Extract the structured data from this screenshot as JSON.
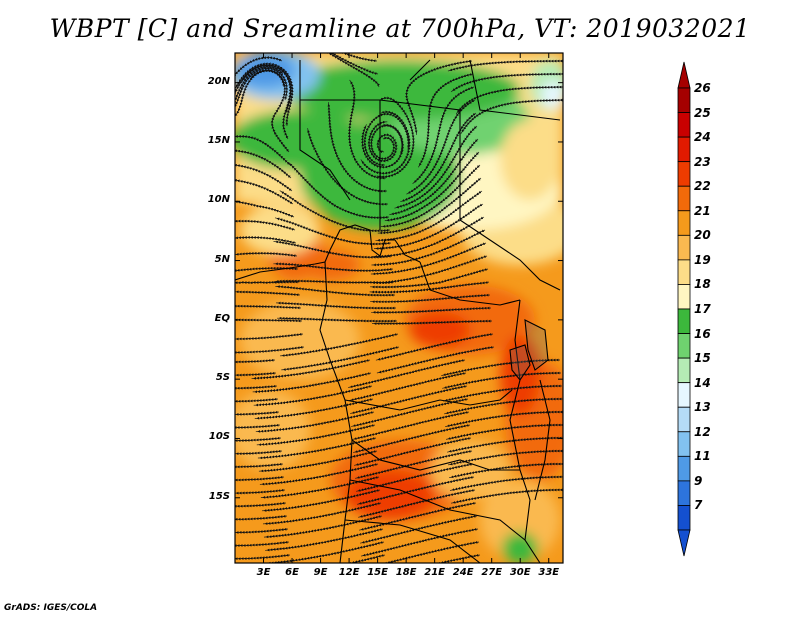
{
  "title": "WBPT [C] and Sreamline at 700hPa, VT: 2019032021",
  "credit": "GrADS: IGES/COLA",
  "map": {
    "variable": "Wet-bulb potential temperature",
    "units": "C",
    "level": "700hPa",
    "valid_time": "2019032021",
    "lat_ticks": [
      "20N",
      "15N",
      "10N",
      "5N",
      "EQ",
      "5S",
      "10S",
      "15S"
    ],
    "lat_values": [
      20,
      15,
      10,
      5,
      0,
      -5,
      -10,
      -15
    ],
    "lon_ticks": [
      "3E",
      "6E",
      "9E",
      "12E",
      "15E",
      "18E",
      "21E",
      "24E",
      "27E",
      "30E",
      "33E"
    ],
    "lon_values": [
      3,
      6,
      9,
      12,
      15,
      18,
      21,
      24,
      27,
      30,
      33
    ],
    "lon_range": [
      0,
      34.5
    ],
    "lat_range": [
      -20.5,
      22.5
    ]
  },
  "legend": {
    "labels": [
      "26",
      "25",
      "24",
      "23",
      "22",
      "21",
      "20",
      "19",
      "18",
      "17",
      "16",
      "15",
      "14",
      "13",
      "12",
      "11",
      "9",
      "7"
    ],
    "colors": [
      "#a50000",
      "#c80000",
      "#e11a00",
      "#ee3c00",
      "#f26a0a",
      "#f59a1c",
      "#fab950",
      "#fcdd88",
      "#fff6c2",
      "#3cb83c",
      "#6fd26f",
      "#b5ecb5",
      "#e6f7ff",
      "#b5dcf7",
      "#82c2f0",
      "#4f9ae6",
      "#2d74dd",
      "#1450d0"
    ],
    "top_arrow_color": "#a50000",
    "bottom_arrow_color": "#1450d0"
  }
}
